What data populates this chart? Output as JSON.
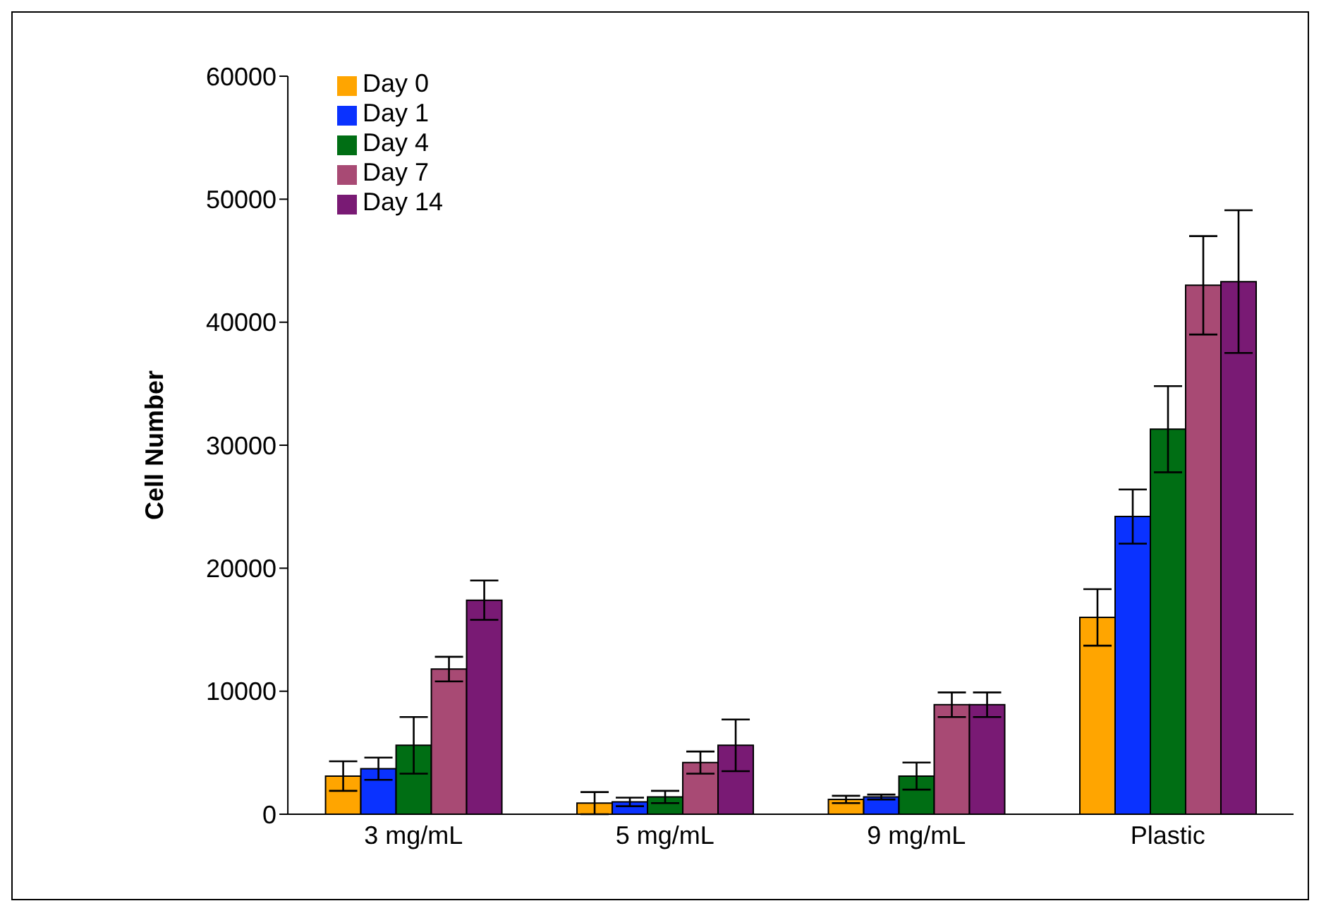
{
  "chart_data": {
    "type": "bar",
    "ylabel": "Cell Number",
    "categories": [
      "3 mg/mL",
      "5 mg/mL",
      "9 mg/mL",
      "Plastic"
    ],
    "series": [
      {
        "name": "Day 0",
        "color": "#ffa500",
        "values": [
          3100,
          900,
          1200,
          16000
        ],
        "errors": [
          1200,
          900,
          300,
          2300
        ]
      },
      {
        "name": "Day 1",
        "color": "#0a32ff",
        "values": [
          3700,
          1000,
          1400,
          24200
        ],
        "errors": [
          900,
          350,
          200,
          2200
        ]
      },
      {
        "name": "Day 4",
        "color": "#006e14",
        "values": [
          5600,
          1400,
          3100,
          31300
        ],
        "errors": [
          2300,
          500,
          1100,
          3500
        ]
      },
      {
        "name": "Day 7",
        "color": "#a84a74",
        "values": [
          11800,
          4200,
          8900,
          43000
        ],
        "errors": [
          1000,
          900,
          1000,
          4000
        ]
      },
      {
        "name": "Day 14",
        "color": "#791a74",
        "values": [
          17400,
          5600,
          8900,
          43300
        ],
        "errors": [
          1600,
          2100,
          1000,
          5800
        ]
      }
    ],
    "ylim": [
      0,
      60000
    ],
    "yticks": [
      0,
      10000,
      20000,
      30000,
      40000,
      50000,
      60000
    ],
    "grid": false,
    "legend": "top left"
  }
}
